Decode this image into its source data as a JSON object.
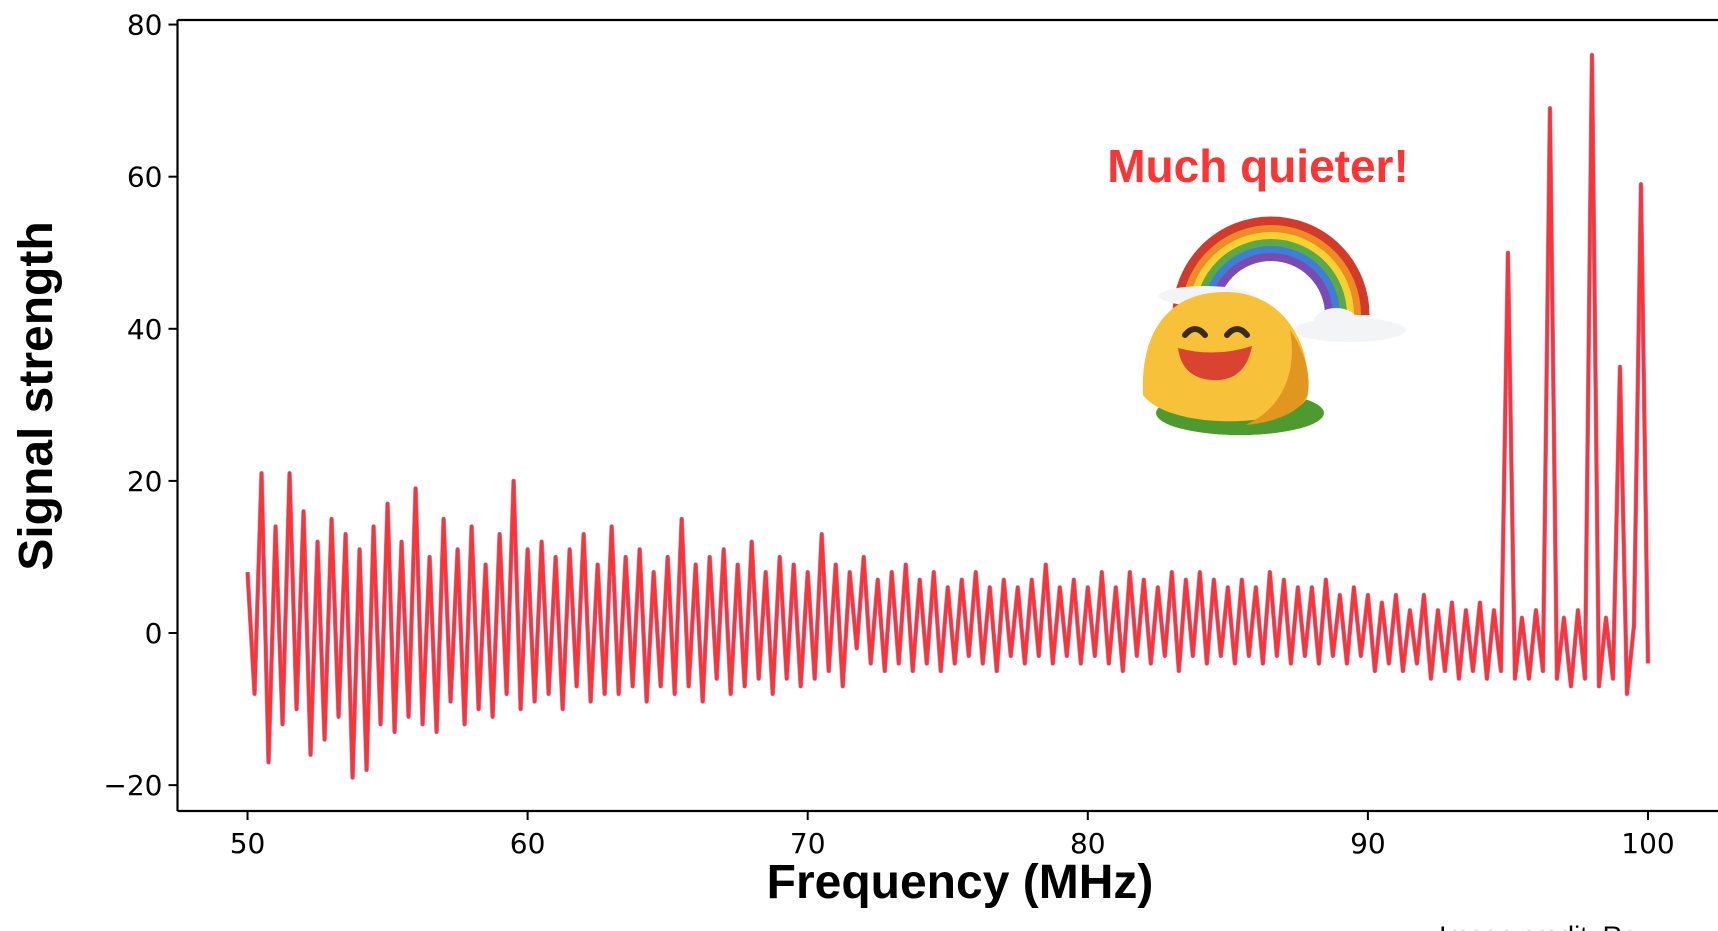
{
  "chart_data": {
    "type": "line",
    "xlabel": "Frequency (MHz)",
    "ylabel": "Signal strength",
    "annotation": "Much quieter!",
    "annotation_color": "#ff3333",
    "credit": "Image credit: Ra",
    "color": "#ff3333",
    "xlim": [
      47.5,
      102.5
    ],
    "ylim": [
      -23.4,
      80.6
    ],
    "xticks": [
      50,
      60,
      70,
      80,
      90,
      100
    ],
    "yticks": [
      {
        "value": -20,
        "label": "−20"
      },
      0,
      20,
      40,
      60,
      80
    ],
    "x": [
      50,
      50.25,
      50.5,
      50.75,
      51,
      51.25,
      51.5,
      51.75,
      52,
      52.25,
      52.5,
      52.75,
      53,
      53.25,
      53.5,
      53.75,
      54,
      54.25,
      54.5,
      54.75,
      55,
      55.25,
      55.5,
      55.75,
      56,
      56.25,
      56.5,
      56.75,
      57,
      57.25,
      57.5,
      57.75,
      58,
      58.25,
      58.5,
      58.75,
      59,
      59.25,
      59.5,
      59.75,
      60,
      60.25,
      60.5,
      60.75,
      61,
      61.25,
      61.5,
      61.75,
      62,
      62.25,
      62.5,
      62.75,
      63,
      63.25,
      63.5,
      63.75,
      64,
      64.25,
      64.5,
      64.75,
      65,
      65.25,
      65.5,
      65.75,
      66,
      66.25,
      66.5,
      66.75,
      67,
      67.25,
      67.5,
      67.75,
      68,
      68.25,
      68.5,
      68.75,
      69,
      69.25,
      69.5,
      69.75,
      70,
      70.25,
      70.5,
      70.75,
      71,
      71.25,
      71.5,
      71.75,
      72,
      72.25,
      72.5,
      72.75,
      73,
      73.25,
      73.5,
      73.75,
      74,
      74.25,
      74.5,
      74.75,
      75,
      75.25,
      75.5,
      75.75,
      76,
      76.25,
      76.5,
      76.75,
      77,
      77.25,
      77.5,
      77.75,
      78,
      78.25,
      78.5,
      78.75,
      79,
      79.25,
      79.5,
      79.75,
      80,
      80.25,
      80.5,
      80.75,
      81,
      81.25,
      81.5,
      81.75,
      82,
      82.25,
      82.5,
      82.75,
      83,
      83.25,
      83.5,
      83.75,
      84,
      84.25,
      84.5,
      84.75,
      85,
      85.25,
      85.5,
      85.75,
      86,
      86.25,
      86.5,
      86.75,
      87,
      87.25,
      87.5,
      87.75,
      88,
      88.25,
      88.5,
      88.75,
      89,
      89.25,
      89.5,
      89.75,
      90,
      90.25,
      90.5,
      90.75,
      91,
      91.25,
      91.5,
      91.75,
      92,
      92.25,
      92.5,
      92.75,
      93,
      93.25,
      93.5,
      93.75,
      94,
      94.25,
      94.5,
      94.75,
      95,
      95.25,
      95.5,
      95.75,
      96,
      96.25,
      96.5,
      96.75,
      97,
      97.25,
      97.5,
      97.75,
      98,
      98.25,
      98.5,
      98.75,
      99,
      99.25,
      99.5,
      99.75,
      100
    ],
    "values": [
      8,
      -8,
      21,
      -17,
      14,
      -12,
      21,
      -10,
      16,
      -16,
      12,
      -14,
      15,
      -11,
      13,
      -19,
      11,
      -18,
      14,
      -12,
      17,
      -13,
      12,
      -11,
      19,
      -12,
      10,
      -13,
      15,
      -9,
      11,
      -12,
      14,
      -10,
      9,
      -11,
      13,
      -8,
      20,
      -10,
      11,
      -9,
      12,
      -8,
      10,
      -10,
      11,
      -7,
      13,
      -9,
      9,
      -8,
      14,
      -8,
      10,
      -7,
      11,
      -9,
      8,
      -7,
      10,
      -8,
      15,
      -7,
      9,
      -9,
      10,
      -6,
      11,
      -8,
      9,
      -7,
      12,
      -6,
      8,
      -8,
      10,
      -6,
      9,
      -7,
      8,
      -6,
      13,
      -5,
      9,
      -7,
      8,
      -2,
      10,
      -4,
      7,
      -5,
      8,
      -4,
      9,
      -5,
      7,
      -4,
      8,
      -5,
      6,
      -4,
      7,
      -3,
      8,
      -4,
      6,
      -5,
      7,
      -3,
      6,
      -4,
      7,
      -3,
      9,
      -4,
      6,
      -3,
      7,
      -4,
      6,
      -3,
      8,
      -4,
      6,
      -5,
      8,
      -3,
      7,
      -4,
      6,
      -3,
      8,
      -5,
      7,
      -3,
      8,
      -4,
      7,
      -3,
      6,
      -4,
      7,
      -3,
      6,
      -4,
      8,
      -3,
      7,
      -4,
      6,
      -3,
      6,
      -4,
      7,
      -3,
      5,
      -4,
      6,
      -3,
      5,
      -5,
      4,
      -4,
      5,
      -5,
      3,
      -4,
      5,
      -6,
      3,
      -5,
      4,
      -6,
      3,
      -5,
      4,
      -6,
      3,
      -5,
      50,
      -6,
      2,
      -6,
      3,
      -5,
      69,
      -6,
      2,
      -7,
      3,
      -6,
      76,
      -7,
      2,
      -6,
      35,
      -8,
      1,
      59,
      -4
    ]
  }
}
